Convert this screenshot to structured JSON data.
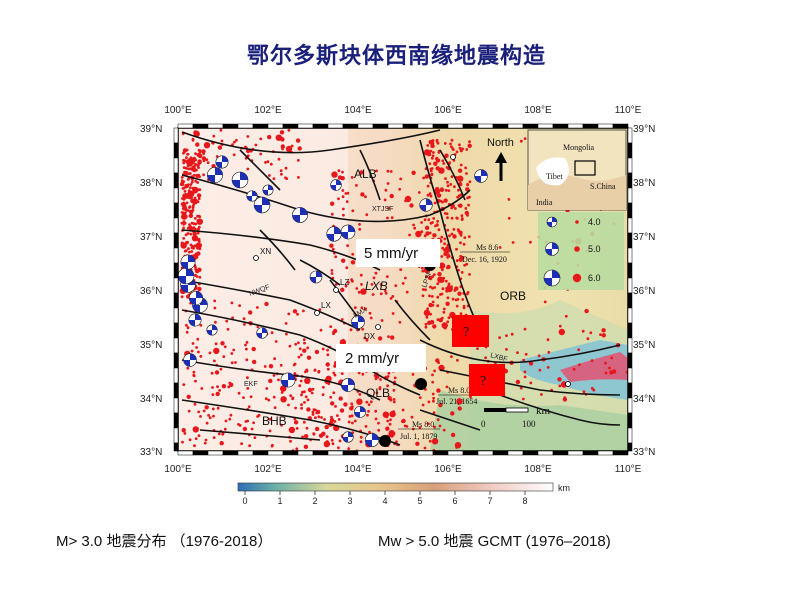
{
  "title": "鄂尔多斯块体西南缘地震构造",
  "captions": {
    "left": "M> 3.0 地震分布 （1976-2018）",
    "right": "Mw > 5.0 地震 GCMT (1976–2018)"
  },
  "map": {
    "lon_ticks": [
      "100°E",
      "102°E",
      "104°E",
      "106°E",
      "108°E",
      "110°E"
    ],
    "lat_ticks": [
      "39°N",
      "38°N",
      "37°N",
      "36°N",
      "35°N",
      "34°N",
      "33°N"
    ],
    "north_label": "North",
    "inset": {
      "mongolia": "Mongolia",
      "tibet": "Tibet",
      "s_china": "S.China",
      "india": "India"
    },
    "legend": [
      "4.0",
      "5.0",
      "6.0"
    ],
    "blocks": {
      "alb": "ALB",
      "lxb": "LXB",
      "orb": "ORB",
      "qlb": "QLB",
      "bhb": "BHB"
    },
    "faults": {
      "xtjsf": "XTJSF",
      "nwqf": "NWQF",
      "ekf": "EKF",
      "lxbf": "LXBF",
      "lpsf": "LPSF",
      "lmx": "LMX"
    },
    "cities": {
      "xn": "XN",
      "lz": "LZ",
      "lx": "LX",
      "dx": "DX"
    },
    "events": [
      {
        "mag": "Ms 8.6",
        "date": "Dec. 16, 1920"
      },
      {
        "mag": "Ms 8.0",
        "date": "Jul. 21, 1654"
      },
      {
        "mag": "Ms 8.0",
        "date": "Jul. 1, 1879"
      }
    ],
    "rates": {
      "upper": "5 mm/yr",
      "lower": "2 mm/yr"
    },
    "question": "?",
    "scalebar": {
      "unit": "km",
      "zero": "0",
      "hundred": "100"
    },
    "elevation": {
      "ticks": [
        "0",
        "1",
        "2",
        "3",
        "4",
        "5",
        "6",
        "7",
        "8"
      ],
      "unit": "km"
    }
  },
  "colors": {
    "title": "#1a1f7a",
    "quake": "#e8171b",
    "beachball": "#1d2fb5",
    "fault": "#111111",
    "question_box": "#ff0000"
  }
}
